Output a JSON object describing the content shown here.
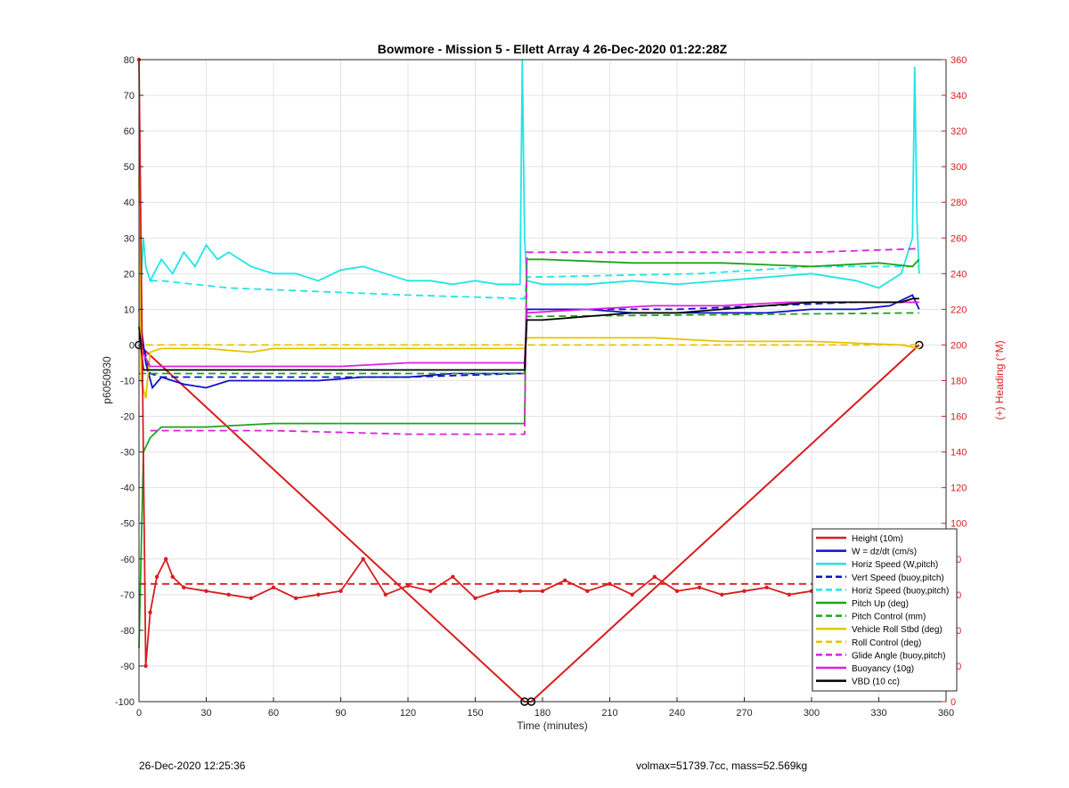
{
  "chart_data": {
    "type": "line",
    "title": "Bowmore - Mission 5 - Ellett Array 4 26-Dec-2020 01:22:28Z",
    "xlabel": "Time (minutes)",
    "ylabel": "p6050930",
    "y2label": "(+) Heading (°M)",
    "xlim": [
      0,
      360
    ],
    "ylim": [
      -100,
      80
    ],
    "y2lim": [
      0,
      360
    ],
    "xticks": [
      "0",
      "30",
      "60",
      "90",
      "120",
      "150",
      "180",
      "210",
      "240",
      "270",
      "300",
      "330",
      "360"
    ],
    "yticks": [
      "-100",
      "-90",
      "-80",
      "-70",
      "-60",
      "-50",
      "-40",
      "-30",
      "-20",
      "-10",
      "0",
      "10",
      "20",
      "30",
      "40",
      "50",
      "60",
      "70",
      "80"
    ],
    "y2ticks": [
      "0",
      "20",
      "40",
      "60",
      "80",
      "100",
      "120",
      "140",
      "160",
      "180",
      "200",
      "220",
      "240",
      "260",
      "280",
      "300",
      "320",
      "340",
      "360"
    ],
    "grid": true,
    "legend_position": "bottom-right",
    "legend": [
      {
        "label": "Height (10m)",
        "color": "#d81e1e",
        "dash": false
      },
      {
        "label": "W = dz/dt (cm/s)",
        "color": "#1010cc",
        "dash": false
      },
      {
        "label": "Horiz Speed (W,pitch)",
        "color": "#22e5e5",
        "dash": false
      },
      {
        "label": "Vert Speed (buoy,pitch)",
        "color": "#1010cc",
        "dash": true
      },
      {
        "label": "Horiz Speed (buoy,pitch)",
        "color": "#22e5e5",
        "dash": true
      },
      {
        "label": "Pitch Up (deg)",
        "color": "#1fa31f",
        "dash": false
      },
      {
        "label": "Pitch Control (mm)",
        "color": "#1fa31f",
        "dash": true
      },
      {
        "label": "Vehicle Roll Stbd (deg)",
        "color": "#e5c400",
        "dash": false
      },
      {
        "label": "Roll Control (deg)",
        "color": "#e5c400",
        "dash": true
      },
      {
        "label": "Glide Angle (buoy,pitch)",
        "color": "#e01ee0",
        "dash": true
      },
      {
        "label": "Buoyancy (10g)",
        "color": "#e01ee0",
        "dash": false
      },
      {
        "label": "VBD (10 cc)",
        "color": "#000000",
        "dash": false
      }
    ],
    "series": [
      {
        "name": "Height (10m)",
        "color": "#d81e1e",
        "x": [
          0,
          172,
          175,
          348
        ],
        "y": [
          0,
          -100,
          -100,
          0
        ]
      },
      {
        "name": "W = dz/dt (cm/s)",
        "color": "#1010cc",
        "x": [
          0,
          3,
          6,
          10,
          20,
          30,
          40,
          60,
          80,
          100,
          120,
          140,
          160,
          170,
          172,
          173,
          180,
          200,
          220,
          240,
          260,
          280,
          300,
          320,
          335,
          345,
          348
        ],
        "y": [
          10,
          -5,
          -12,
          -9,
          -11,
          -12,
          -10,
          -10,
          -10,
          -9,
          -9,
          -8,
          -8,
          -8,
          -8,
          10,
          10,
          10,
          9,
          9,
          9,
          9,
          10,
          10,
          11,
          14,
          10
        ]
      },
      {
        "name": "Horiz Speed (W,pitch)",
        "color": "#22e5e5",
        "x": [
          0,
          1,
          2,
          3,
          5,
          10,
          15,
          20,
          25,
          30,
          35,
          40,
          50,
          60,
          70,
          80,
          90,
          100,
          110,
          120,
          130,
          140,
          150,
          160,
          170,
          171,
          172,
          173,
          180,
          200,
          220,
          240,
          260,
          280,
          300,
          320,
          330,
          340,
          345,
          346,
          347,
          348
        ],
        "y": [
          5,
          18,
          30,
          22,
          18,
          24,
          20,
          26,
          22,
          28,
          24,
          26,
          22,
          20,
          20,
          18,
          21,
          22,
          20,
          18,
          18,
          17,
          18,
          17,
          17,
          80,
          30,
          18,
          17,
          17,
          18,
          17,
          18,
          19,
          20,
          18,
          16,
          20,
          30,
          78,
          35,
          20
        ]
      },
      {
        "name": "Vert Speed (buoy,pitch)",
        "color": "#1010cc",
        "dash": true,
        "x": [
          0,
          5,
          10,
          60,
          120,
          170,
          172,
          173,
          200,
          240,
          280,
          320,
          348
        ],
        "y": [
          5,
          -8,
          -9,
          -9,
          -9,
          -8,
          -8,
          10,
          10,
          10,
          11,
          12,
          12
        ]
      },
      {
        "name": "Horiz Speed (buoy,pitch)",
        "color": "#22e5e5",
        "dash": true,
        "x": [
          5,
          10,
          40,
          80,
          120,
          172,
          173,
          250,
          300,
          348
        ],
        "y": [
          18,
          18,
          16,
          15,
          14,
          13,
          19,
          20,
          22,
          22
        ]
      },
      {
        "name": "Pitch Up (deg)",
        "color": "#1fa31f",
        "x": [
          0,
          2,
          5,
          10,
          30,
          60,
          90,
          120,
          150,
          170,
          172,
          173,
          180,
          220,
          260,
          300,
          330,
          345,
          348
        ],
        "y": [
          -85,
          -30,
          -26,
          -23,
          -23,
          -22,
          -22,
          -22,
          -22,
          -22,
          -22,
          24,
          24,
          23,
          23,
          22,
          23,
          22,
          24
        ]
      },
      {
        "name": "Pitch Control (mm)",
        "color": "#1fa31f",
        "dash": true,
        "x": [
          0,
          5,
          170,
          172,
          173,
          348
        ],
        "y": [
          -8,
          -8,
          -8,
          -8,
          8,
          9
        ]
      },
      {
        "name": "Vehicle Roll Stbd (deg)",
        "color": "#e5c400",
        "x": [
          0,
          1,
          3,
          5,
          10,
          30,
          50,
          60,
          90,
          120,
          150,
          170,
          172,
          173,
          200,
          230,
          260,
          300,
          340,
          348
        ],
        "y": [
          47,
          -10,
          -15,
          -2,
          -1,
          -1,
          -2,
          -1,
          -1,
          -1,
          -1,
          -1,
          -1,
          2,
          2,
          2,
          1,
          1,
          0,
          -1
        ]
      },
      {
        "name": "Roll Control (deg)",
        "color": "#e5c400",
        "dash": true,
        "x": [
          3,
          170,
          172,
          173,
          348
        ],
        "y": [
          0,
          0,
          0,
          0,
          0
        ]
      },
      {
        "name": "Glide Angle (buoy,pitch)",
        "color": "#e01ee0",
        "dash": true,
        "x": [
          5,
          10,
          60,
          120,
          170,
          172,
          173,
          220,
          260,
          300,
          348
        ],
        "y": [
          -24,
          -24,
          -24,
          -25,
          -25,
          -25,
          26,
          26,
          26,
          26,
          27
        ]
      },
      {
        "name": "Buoyancy (10g)",
        "color": "#e01ee0",
        "x": [
          0,
          5,
          30,
          60,
          90,
          120,
          150,
          170,
          172,
          173,
          200,
          230,
          260,
          290,
          320,
          348
        ],
        "y": [
          0,
          -6,
          -6,
          -6,
          -6,
          -5,
          -5,
          -5,
          -5,
          9,
          10,
          11,
          11,
          12,
          12,
          12
        ]
      },
      {
        "name": "VBD (10 cc)",
        "color": "#000000",
        "x": [
          0,
          2,
          3,
          60,
          120,
          170,
          172,
          173,
          180,
          200,
          220,
          240,
          260,
          280,
          300,
          320,
          340,
          345,
          348
        ],
        "y": [
          5,
          -7,
          -7,
          -7,
          -7,
          -7,
          -7,
          7,
          7,
          8,
          9,
          9,
          10,
          11,
          12,
          12,
          12,
          13,
          13
        ]
      },
      {
        "name": "Heading",
        "color": "#d81e1e",
        "axis": "right",
        "x": [
          0,
          3,
          5,
          8,
          12,
          15,
          20,
          30,
          40,
          50,
          60,
          70,
          80,
          90,
          100,
          110,
          120,
          130,
          140,
          150,
          160,
          170,
          180,
          190,
          200,
          210,
          220,
          230,
          240,
          250,
          260,
          270,
          280,
          290,
          300,
          310,
          320,
          330,
          340,
          348
        ],
        "y": [
          360,
          20,
          50,
          70,
          80,
          70,
          64,
          62,
          60,
          58,
          64,
          58,
          60,
          62,
          80,
          60,
          65,
          62,
          70,
          58,
          62,
          62,
          62,
          68,
          62,
          66,
          60,
          70,
          62,
          64,
          60,
          62,
          64,
          60,
          62,
          64,
          62,
          60,
          62,
          64
        ]
      },
      {
        "name": "Mean Heading",
        "color": "#d81e1e",
        "axis": "right",
        "dash": true,
        "x": [
          0,
          348
        ],
        "y": [
          66,
          66
        ]
      }
    ]
  },
  "footer": {
    "left": "26-Dec-2020 12:25:36",
    "right": "volmax=51739.7cc, mass=52.569kg"
  }
}
